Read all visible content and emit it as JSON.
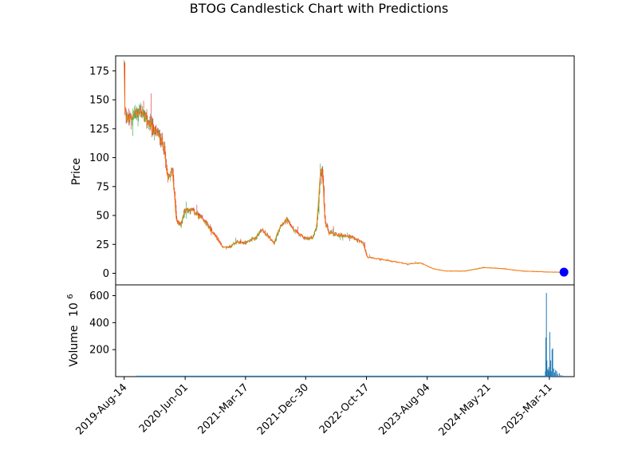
{
  "chart_data": {
    "type": "candlestick",
    "title": "BTOG Candlestick Chart with Predictions",
    "price_panel": {
      "ylabel": "Price",
      "ylim": [
        -10,
        188
      ],
      "yticks": [
        0,
        25,
        50,
        75,
        100,
        125,
        150,
        175
      ],
      "up_color": "#2ca02c",
      "down_color": "#d62728",
      "close_line_color": "#ff7f0e",
      "prediction_marker_color": "#0000ff",
      "price_path": [
        [
          "2019-08-14",
          180
        ],
        [
          "2019-08-17",
          140
        ],
        [
          "2019-09-05",
          132
        ],
        [
          "2019-10-01",
          138
        ],
        [
          "2019-11-01",
          140
        ],
        [
          "2019-12-01",
          132
        ],
        [
          "2020-01-01",
          124
        ],
        [
          "2020-02-01",
          118
        ],
        [
          "2020-02-20",
          110
        ],
        [
          "2020-03-10",
          80
        ],
        [
          "2020-04-01",
          90
        ],
        [
          "2020-04-20",
          45
        ],
        [
          "2020-05-10",
          42
        ],
        [
          "2020-06-01",
          55
        ],
        [
          "2020-07-01",
          55
        ],
        [
          "2020-08-01",
          50
        ],
        [
          "2020-09-01",
          45
        ],
        [
          "2020-10-01",
          38
        ],
        [
          "2020-11-01",
          30
        ],
        [
          "2020-12-01",
          22
        ],
        [
          "2021-01-01",
          23
        ],
        [
          "2021-02-01",
          27
        ],
        [
          "2021-03-01",
          26
        ],
        [
          "2021-04-01",
          28
        ],
        [
          "2021-05-01",
          30
        ],
        [
          "2021-06-01",
          38
        ],
        [
          "2021-07-01",
          32
        ],
        [
          "2021-08-01",
          26
        ],
        [
          "2021-09-01",
          42
        ],
        [
          "2021-10-01",
          46
        ],
        [
          "2021-11-01",
          38
        ],
        [
          "2021-12-01",
          33
        ],
        [
          "2022-01-01",
          30
        ],
        [
          "2022-02-01",
          31
        ],
        [
          "2022-02-20",
          40
        ],
        [
          "2022-03-10",
          85
        ],
        [
          "2022-03-20",
          92
        ],
        [
          "2022-04-01",
          45
        ],
        [
          "2022-04-20",
          35
        ],
        [
          "2022-06-01",
          33
        ],
        [
          "2022-08-01",
          32
        ],
        [
          "2022-10-01",
          26
        ],
        [
          "2022-10-20",
          14
        ],
        [
          "2023-01-01",
          12
        ],
        [
          "2023-03-01",
          10
        ],
        [
          "2023-05-01",
          8
        ],
        [
          "2023-07-01",
          9
        ],
        [
          "2023-09-01",
          4
        ],
        [
          "2023-11-01",
          2
        ],
        [
          "2024-02-01",
          2
        ],
        [
          "2024-05-01",
          5
        ],
        [
          "2024-08-01",
          4
        ],
        [
          "2024-11-01",
          2
        ],
        [
          "2025-03-01",
          1.2
        ],
        [
          "2025-05-20",
          0.8
        ]
      ],
      "prediction": {
        "x": "2025-05-20",
        "y": 1
      }
    },
    "volume_panel": {
      "ylabel": "Volume",
      "unit": "10^6",
      "ylim": [
        0,
        680
      ],
      "yticks": [
        200,
        400,
        600
      ],
      "bar_color": "#1f77b4",
      "bars": [
        [
          "2025-02-20",
          40
        ],
        [
          "2025-02-22",
          290
        ],
        [
          "2025-02-25",
          620
        ],
        [
          "2025-02-27",
          120
        ],
        [
          "2025-03-01",
          55
        ],
        [
          "2025-03-05",
          50
        ],
        [
          "2025-03-08",
          70
        ],
        [
          "2025-03-10",
          40
        ],
        [
          "2025-03-13",
          330
        ],
        [
          "2025-03-17",
          120
        ],
        [
          "2025-03-20",
          40
        ],
        [
          "2025-03-24",
          200
        ],
        [
          "2025-03-27",
          210
        ],
        [
          "2025-04-01",
          60
        ],
        [
          "2025-04-05",
          30
        ],
        [
          "2025-04-10",
          50
        ],
        [
          "2025-04-15",
          40
        ],
        [
          "2025-04-20",
          20
        ],
        [
          "2025-04-28",
          25
        ],
        [
          "2025-05-05",
          12
        ],
        [
          "2025-05-12",
          8
        ]
      ]
    },
    "x_axis": {
      "range": [
        "2019-07-04",
        "2025-07-08"
      ],
      "tick_labels": [
        "2019-Aug-14",
        "2020-Jun-01",
        "2021-Mar-17",
        "2021-Dec-30",
        "2022-Oct-17",
        "2023-Aug-04",
        "2024-May-21",
        "2025-Mar-11"
      ],
      "tick_dates": [
        "2019-08-14",
        "2020-06-01",
        "2021-03-17",
        "2021-12-30",
        "2022-10-17",
        "2023-08-04",
        "2024-05-21",
        "2025-03-11"
      ]
    }
  }
}
